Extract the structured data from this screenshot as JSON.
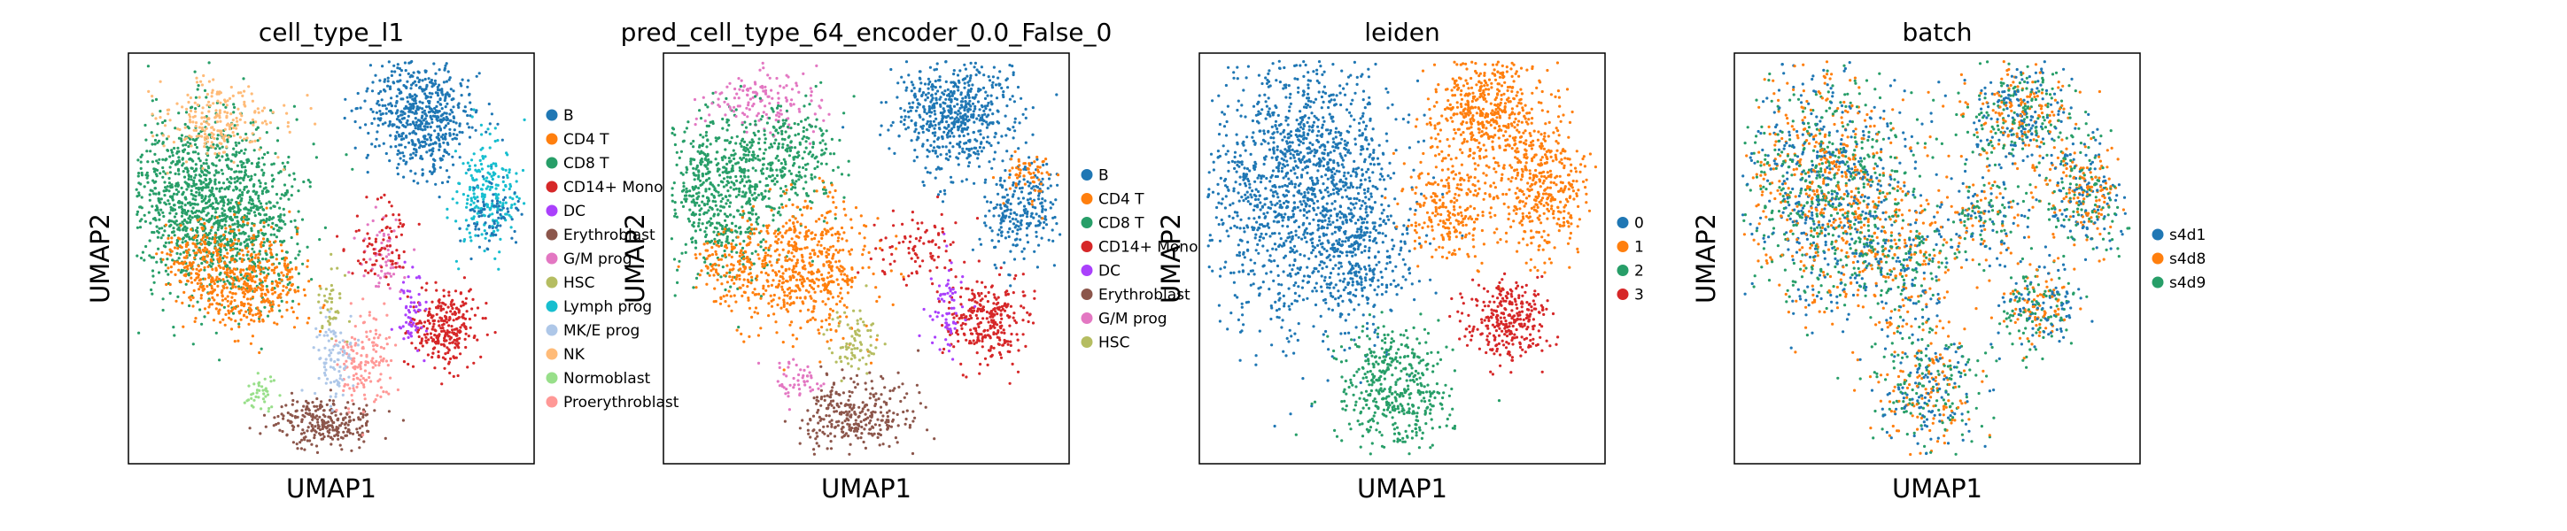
{
  "chart_data": [
    {
      "type": "scatter",
      "title": "cell_type_l1",
      "xlabel": "UMAP1",
      "ylabel": "UMAP2",
      "grid": false,
      "legend": "right",
      "categories": [
        "B",
        "CD4 T",
        "CD8 T",
        "CD14+ Mono",
        "DC",
        "Erythroblast",
        "G/M prog",
        "HSC",
        "Lymph prog",
        "MK/E prog",
        "NK",
        "Normoblast",
        "Proerythroblast"
      ],
      "colors": [
        "#1f77b4",
        "#ff7f0e",
        "#279e68",
        "#d62728",
        "#aa40fc",
        "#8c564b",
        "#e377c2",
        "#b5bd61",
        "#17becf",
        "#aec7e8",
        "#ffbb78",
        "#98df8a",
        "#ff9896"
      ]
    },
    {
      "type": "scatter",
      "title": "pred_cell_type_64_encoder_0.0_False_0",
      "xlabel": "UMAP1",
      "ylabel": "UMAP2",
      "grid": false,
      "legend": "right",
      "categories": [
        "B",
        "CD4 T",
        "CD8 T",
        "CD14+ Mono",
        "DC",
        "Erythroblast",
        "G/M prog",
        "HSC"
      ],
      "colors": [
        "#1f77b4",
        "#ff7f0e",
        "#279e68",
        "#d62728",
        "#aa40fc",
        "#8c564b",
        "#e377c2",
        "#b5bd61"
      ]
    },
    {
      "type": "scatter",
      "title": "leiden",
      "xlabel": "UMAP1",
      "ylabel": "UMAP2",
      "grid": false,
      "legend": "right",
      "categories": [
        "0",
        "1",
        "2",
        "3"
      ],
      "colors": [
        "#1f77b4",
        "#ff7f0e",
        "#279e68",
        "#d62728"
      ]
    },
    {
      "type": "scatter",
      "title": "batch",
      "xlabel": "UMAP1",
      "ylabel": "UMAP2",
      "grid": false,
      "legend": "right",
      "categories": [
        "s4d1",
        "s4d8",
        "s4d9"
      ],
      "colors": [
        "#1f77b4",
        "#ff7f0e",
        "#279e68"
      ]
    }
  ]
}
